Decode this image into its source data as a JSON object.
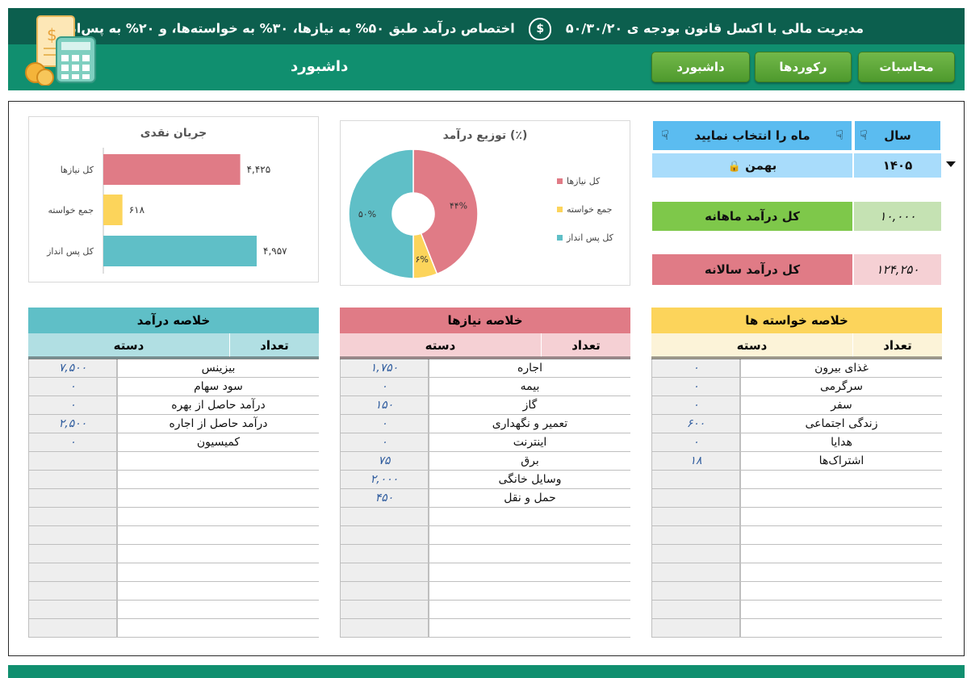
{
  "header": {
    "title": "مدیریت مالی با اکسل قانون بودجه ی ۵۰/۳۰/۲۰",
    "subtitle": "اختصاص درآمد طبق ۵۰% به نیازها، ۳۰% به خواسته‌ها، و ۲۰% به پس‌انداز",
    "page_name": "داشبورد",
    "nav": [
      {
        "label": "محاسبات"
      },
      {
        "label": "رکوردها"
      },
      {
        "label": "داشبورد"
      }
    ]
  },
  "selector": {
    "year_label": "سال",
    "month_label": "ماه را انتخاب نمایید",
    "year_value": "۱۴۰۵",
    "month_value": "بهمن"
  },
  "kpi": {
    "monthly_label": "کل درآمد ماهانه",
    "monthly_value": "۱۰,۰۰۰",
    "yearly_label": "کل درآمد سالانه",
    "yearly_value": "۱۲۴,۲۵۰"
  },
  "bar_chart": {
    "chart_data": {
      "type": "bar",
      "orientation": "horizontal",
      "title": "جریان نقدی",
      "categories": [
        "کل نیازها",
        "جمع خواسته",
        "کل پس انداز"
      ],
      "values": [
        4425,
        618,
        4957
      ],
      "value_labels": [
        "۴,۴۲۵",
        "۶۱۸",
        "۴,۹۵۷"
      ],
      "colors": [
        "#e07b86",
        "#fcd45b",
        "#5fbfc7"
      ]
    }
  },
  "pie_chart": {
    "chart_data": {
      "type": "pie",
      "title": "توزیع درآمد (٪)",
      "categories": [
        "کل نیازها",
        "جمع خواسته",
        "کل پس  انداز"
      ],
      "values": [
        44,
        6,
        50
      ],
      "value_labels": [
        "۴۴%",
        "۶%",
        "۵۰%"
      ],
      "colors": [
        "#e07b86",
        "#fcd45b",
        "#5fbfc7"
      ],
      "legend": "right"
    }
  },
  "tables": {
    "wants": {
      "title": "خلاصه خواسته ها",
      "col_category": "دسته",
      "col_count": "تعداد",
      "rows": [
        {
          "cat": "غذای بیرون",
          "val": "۰"
        },
        {
          "cat": "سرگرمی",
          "val": "۰"
        },
        {
          "cat": "سفر",
          "val": "۰"
        },
        {
          "cat": "زندگی اجتماعی",
          "val": "۶۰۰"
        },
        {
          "cat": "هدایا",
          "val": "۰"
        },
        {
          "cat": "اشتراک‌ها",
          "val": "۱۸"
        }
      ]
    },
    "needs": {
      "title": "خلاصه نیازها",
      "col_category": "دسته",
      "col_count": "تعداد",
      "rows": [
        {
          "cat": "اجاره",
          "val": "۱,۷۵۰"
        },
        {
          "cat": "بیمه",
          "val": "۰"
        },
        {
          "cat": "گاز",
          "val": "۱۵۰"
        },
        {
          "cat": "تعمیر و نگهداری",
          "val": "۰"
        },
        {
          "cat": "اینترنت",
          "val": "۰"
        },
        {
          "cat": "برق",
          "val": "۷۵"
        },
        {
          "cat": "وسایل خانگی",
          "val": "۲,۰۰۰"
        },
        {
          "cat": "حمل و نقل",
          "val": "۴۵۰"
        }
      ]
    },
    "income": {
      "title": "خلاصه درآمد",
      "col_category": "دسته",
      "col_count": "تعداد",
      "rows": [
        {
          "cat": "بیزینس",
          "val": "۷,۵۰۰"
        },
        {
          "cat": "سود سهام",
          "val": "۰"
        },
        {
          "cat": "درآمد حاصل از بهره",
          "val": "۰"
        },
        {
          "cat": "درآمد حاصل از اجاره",
          "val": "۲,۵۰۰"
        },
        {
          "cat": "کمیسیون",
          "val": "۰"
        }
      ]
    }
  }
}
